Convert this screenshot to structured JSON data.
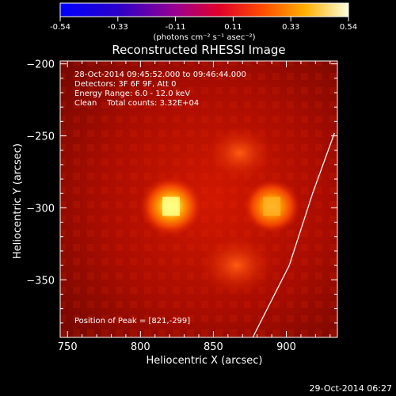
{
  "colorbar": {
    "tick_labels": [
      "-0.54",
      "-0.33",
      "-0.11",
      "0.11",
      "0.33",
      "0.54"
    ],
    "unit_label": "(photons cm⁻² s⁻¹ asec⁻²)"
  },
  "chart_data": {
    "type": "heatmap",
    "title": "Reconstructed RHESSI Image",
    "xlabel": "Heliocentric X (arcsec)",
    "ylabel": "Heliocentric Y (arcsec)",
    "x_ticks": [
      "750",
      "800",
      "850",
      "900"
    ],
    "y_ticks": [
      "-200",
      "-250",
      "-300",
      "-350"
    ],
    "xlim": [
      745,
      935
    ],
    "ylim": [
      -390,
      -198
    ],
    "color_range": [
      -0.54,
      0.54
    ],
    "sources": [
      {
        "x": 821,
        "y": -299,
        "peak": 0.54
      },
      {
        "x": 890,
        "y": -299,
        "peak": 0.41
      },
      {
        "x": 868,
        "y": -262,
        "peak": 0.15
      },
      {
        "x": 866,
        "y": -340,
        "peak": 0.12
      }
    ],
    "annotations": [
      "28-Oct-2014 09:45:52.000 to 09:46:44.000",
      "Detectors: 3F 6F 9F, Att 0",
      "Energy Range: 6.0 - 12.0 keV",
      "Clean    Total counts: 3.32E+04"
    ],
    "peak_label": "Position of Peak = [821,-299]",
    "limb_curve": [
      [
        877,
        -390
      ],
      [
        902,
        -340
      ],
      [
        918,
        -290
      ],
      [
        933,
        -248
      ]
    ]
  },
  "timestamp": "29-Oct-2014 06:27"
}
